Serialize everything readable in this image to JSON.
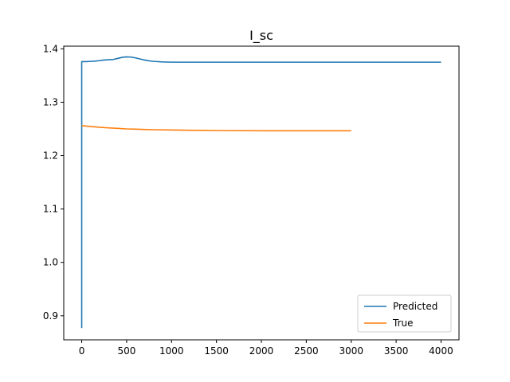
{
  "chart_data": {
    "type": "line",
    "title": "I_sc",
    "xlabel": "",
    "ylabel": "",
    "xlim": [
      -200,
      4200
    ],
    "ylim": [
      0.855,
      1.405
    ],
    "xticks": [
      0,
      500,
      1000,
      1500,
      2000,
      2500,
      3000,
      3500,
      4000
    ],
    "yticks": [
      0.9,
      1.0,
      1.1,
      1.2,
      1.3,
      1.4
    ],
    "ytick_labels": [
      "0.9",
      "1.0",
      "1.1",
      "1.2",
      "1.3",
      "1.4"
    ],
    "grid": false,
    "legend": {
      "position": "lower-right"
    },
    "series": [
      {
        "name": "Predicted",
        "color": "#1f77b4",
        "x": [
          0,
          0,
          5,
          50,
          100,
          150,
          200,
          250,
          300,
          350,
          400,
          450,
          500,
          550,
          600,
          650,
          700,
          750,
          800,
          900,
          1000,
          1200,
          1500,
          2000,
          2500,
          3000,
          3500,
          4000
        ],
        "y": [
          0.877,
          1.376,
          1.376,
          1.376,
          1.3765,
          1.377,
          1.378,
          1.379,
          1.3795,
          1.38,
          1.382,
          1.384,
          1.385,
          1.3845,
          1.383,
          1.381,
          1.379,
          1.3775,
          1.3765,
          1.3755,
          1.375,
          1.375,
          1.375,
          1.375,
          1.375,
          1.375,
          1.375,
          1.375
        ]
      },
      {
        "name": "True",
        "color": "#ff7f0e",
        "x": [
          0,
          100,
          200,
          300,
          400,
          500,
          600,
          700,
          800,
          1000,
          1200,
          1500,
          2000,
          2500,
          3000
        ],
        "y": [
          1.256,
          1.2545,
          1.253,
          1.252,
          1.251,
          1.25,
          1.2495,
          1.249,
          1.2485,
          1.248,
          1.2475,
          1.247,
          1.2465,
          1.2465,
          1.2465
        ]
      }
    ]
  }
}
